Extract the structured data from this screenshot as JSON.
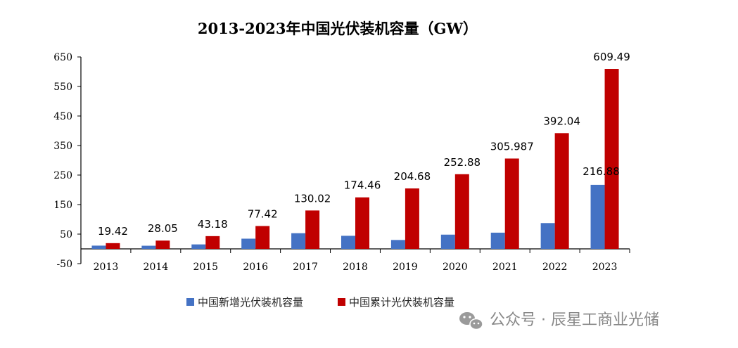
{
  "chart_data": {
    "type": "bar",
    "title": "2013-2023年中国光伏装机容量（GW）",
    "categories": [
      "2013",
      "2014",
      "2015",
      "2016",
      "2017",
      "2018",
      "2019",
      "2020",
      "2021",
      "2022",
      "2023"
    ],
    "series": [
      {
        "name": "中国新增光伏装机容量",
        "color": "#4472c4",
        "values": [
          10.95,
          10.6,
          15.13,
          34.54,
          53.06,
          44.26,
          30.11,
          48.2,
          54.88,
          87.41,
          216.88
        ]
      },
      {
        "name": "中国累计光伏装机容量",
        "color": "#c00000",
        "values": [
          19.42,
          28.05,
          43.18,
          77.42,
          130.02,
          174.46,
          204.68,
          252.88,
          305.987,
          392.04,
          609.49
        ]
      }
    ],
    "data_labels": [
      {
        "series": 1,
        "index": 0,
        "text": "19.42"
      },
      {
        "series": 1,
        "index": 1,
        "text": "28.05"
      },
      {
        "series": 1,
        "index": 2,
        "text": "43.18"
      },
      {
        "series": 1,
        "index": 3,
        "text": "77.42"
      },
      {
        "series": 1,
        "index": 4,
        "text": "130.02"
      },
      {
        "series": 1,
        "index": 5,
        "text": "174.46"
      },
      {
        "series": 1,
        "index": 6,
        "text": "204.68"
      },
      {
        "series": 1,
        "index": 7,
        "text": "252.88"
      },
      {
        "series": 1,
        "index": 8,
        "text": "305.987"
      },
      {
        "series": 1,
        "index": 9,
        "text": "392.04"
      },
      {
        "series": 1,
        "index": 10,
        "text": "609.49"
      },
      {
        "series": 0,
        "index": 10,
        "text": "216.88"
      }
    ],
    "yticks": [
      "650",
      "550",
      "450",
      "350",
      "250",
      "150",
      "50",
      "-50"
    ],
    "ylim": [
      -50,
      650
    ],
    "legend_position": "bottom",
    "grid": false
  },
  "watermark": {
    "icon": "wechat-icon",
    "text": "公众号 · 辰星工商业光储"
  }
}
